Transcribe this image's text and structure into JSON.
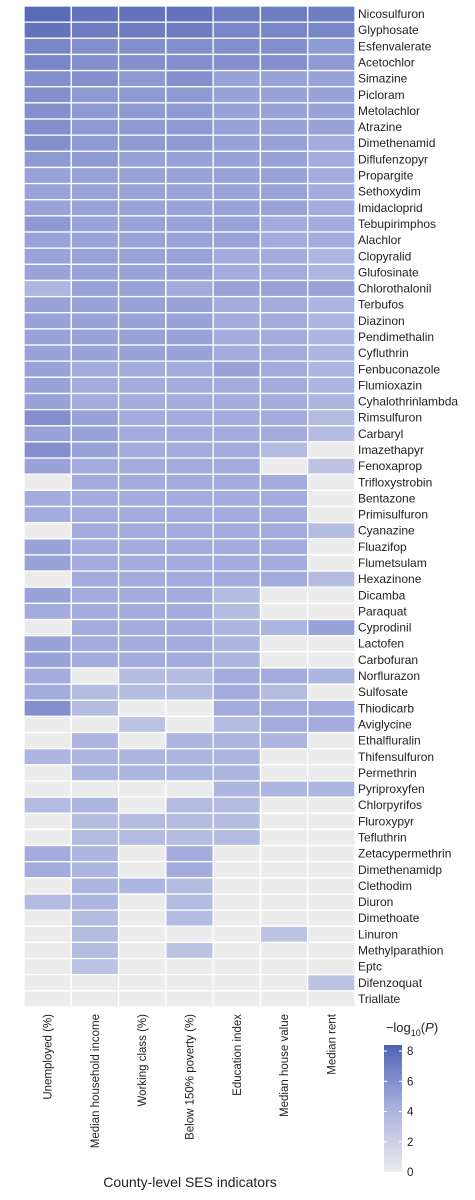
{
  "chart_data": {
    "type": "heatmap",
    "xlabel": "County-level SES indicators",
    "columns": [
      "Unemployed (%)",
      "Median household income",
      "Working class (%)",
      "Below 150% poverty (%)",
      "Education index",
      "Median house value",
      "Median rent"
    ],
    "rows": [
      "Nicosulfuron",
      "Glyphosate",
      "Esfenvalerate",
      "Acetochlor",
      "Simazine",
      "Picloram",
      "Metolachlor",
      "Atrazine",
      "Dimethenamid",
      "Diflufenzopyr",
      "Propargite",
      "Sethoxydim",
      "Imidacloprid",
      "Tebupirimphos",
      "Alachlor",
      "Clopyralid",
      "Glufosinate",
      "Chlorothalonil",
      "Terbufos",
      "Diazinon",
      "Pendimethalin",
      "Cyfluthrin",
      "Fenbuconazole",
      "Flumioxazin",
      "Cyhalothrinlambda",
      "Rimsulfuron",
      "Carbaryl",
      "Imazethapyr",
      "Fenoxaprop",
      "Trifloxystrobin",
      "Bentazone",
      "Primisulfuron",
      "Cyanazine",
      "Fluazifop",
      "Flumetsulam",
      "Hexazinone",
      "Dicamba",
      "Paraquat",
      "Cyprodinil",
      "Lactofen",
      "Carbofuran",
      "Norflurazon",
      "Sulfosate",
      "Thiodicarb",
      "Aviglycine",
      "Ethalfluralin",
      "Thifensulfuron",
      "Permethrin",
      "Pyriproxyfen",
      "Chlorpyrifos",
      "Fluroxypyr",
      "Tefluthrin",
      "Zetacypermethrin",
      "Dimethenamidp",
      "Clethodim",
      "Diuron",
      "Dimethoate",
      "Linuron",
      "Methylparathion",
      "Eptc",
      "Difenzoquat",
      "Triallate"
    ],
    "values": [
      [
        8.0,
        7.5,
        7.5,
        7.5,
        7.0,
        7.0,
        7.0
      ],
      [
        7.5,
        7.0,
        7.0,
        7.0,
        6.5,
        6.5,
        6.5
      ],
      [
        6.5,
        6.0,
        6.0,
        6.0,
        6.0,
        6.0,
        5.5
      ],
      [
        6.5,
        6.0,
        6.0,
        6.0,
        6.0,
        6.0,
        5.5
      ],
      [
        6.0,
        6.0,
        5.5,
        6.0,
        5.0,
        5.0,
        5.0
      ],
      [
        6.0,
        5.5,
        5.5,
        5.5,
        5.0,
        5.0,
        5.0
      ],
      [
        6.0,
        5.5,
        5.5,
        5.5,
        5.0,
        5.0,
        5.0
      ],
      [
        6.0,
        5.5,
        5.5,
        5.5,
        5.0,
        5.0,
        5.0
      ],
      [
        6.0,
        5.5,
        5.5,
        5.5,
        5.0,
        5.0,
        4.5
      ],
      [
        5.5,
        5.5,
        5.0,
        5.0,
        5.0,
        5.0,
        4.5
      ],
      [
        5.0,
        5.0,
        5.0,
        5.0,
        5.0,
        5.0,
        4.5
      ],
      [
        5.0,
        5.0,
        5.0,
        5.0,
        5.0,
        5.0,
        4.5
      ],
      [
        5.0,
        5.0,
        5.0,
        5.0,
        5.0,
        5.0,
        4.5
      ],
      [
        5.5,
        5.0,
        5.0,
        5.0,
        5.0,
        4.5,
        4.5
      ],
      [
        5.0,
        5.0,
        5.0,
        5.0,
        5.0,
        4.5,
        4.5
      ],
      [
        5.0,
        5.0,
        5.0,
        5.0,
        4.5,
        4.5,
        4.0
      ],
      [
        5.0,
        5.0,
        5.0,
        5.0,
        4.5,
        4.5,
        4.0
      ],
      [
        4.0,
        5.0,
        5.0,
        4.5,
        5.0,
        5.0,
        5.0
      ],
      [
        5.0,
        5.0,
        5.0,
        5.0,
        4.5,
        4.5,
        4.0
      ],
      [
        5.0,
        5.0,
        5.0,
        5.0,
        4.5,
        4.5,
        4.0
      ],
      [
        5.0,
        5.0,
        5.0,
        5.0,
        4.5,
        4.5,
        4.0
      ],
      [
        5.0,
        5.0,
        5.0,
        5.0,
        4.5,
        4.5,
        4.0
      ],
      [
        5.0,
        4.5,
        4.5,
        4.5,
        5.0,
        4.5,
        4.0
      ],
      [
        5.0,
        4.5,
        4.5,
        4.5,
        4.5,
        4.5,
        4.0
      ],
      [
        5.0,
        4.5,
        4.5,
        4.5,
        4.5,
        4.5,
        4.0
      ],
      [
        6.0,
        5.0,
        4.5,
        4.5,
        4.5,
        4.5,
        3.5
      ],
      [
        5.0,
        5.0,
        4.5,
        4.5,
        4.5,
        4.5,
        3.5
      ],
      [
        6.0,
        5.0,
        4.5,
        4.5,
        4.5,
        3.5,
        0.0
      ],
      [
        5.0,
        4.5,
        4.5,
        4.5,
        4.5,
        0.0,
        3.0
      ],
      [
        0.0,
        4.5,
        4.5,
        4.5,
        4.5,
        4.5,
        0.0
      ],
      [
        4.5,
        4.5,
        4.5,
        4.5,
        4.5,
        4.5,
        0.0
      ],
      [
        4.5,
        4.5,
        4.5,
        4.5,
        4.5,
        4.5,
        0.0
      ],
      [
        0.0,
        4.5,
        4.5,
        4.5,
        4.5,
        4.5,
        3.5
      ],
      [
        5.0,
        4.5,
        4.5,
        4.5,
        4.5,
        4.5,
        0.0
      ],
      [
        5.0,
        4.5,
        4.5,
        4.5,
        4.5,
        4.5,
        0.0
      ],
      [
        0.0,
        4.5,
        4.5,
        4.5,
        4.5,
        4.5,
        3.5
      ],
      [
        5.0,
        4.5,
        4.5,
        4.5,
        3.5,
        0.0,
        0.0
      ],
      [
        4.5,
        4.5,
        4.5,
        4.5,
        3.5,
        0.0,
        0.0
      ],
      [
        0.0,
        4.5,
        4.5,
        4.5,
        4.0,
        4.0,
        5.0
      ],
      [
        5.0,
        4.5,
        4.5,
        4.5,
        4.0,
        0.0,
        0.0
      ],
      [
        5.0,
        4.5,
        4.5,
        4.5,
        4.0,
        0.0,
        0.0
      ],
      [
        4.5,
        0.0,
        3.5,
        3.5,
        4.5,
        4.5,
        4.0
      ],
      [
        4.5,
        3.5,
        3.5,
        3.5,
        4.5,
        3.5,
        0.0
      ],
      [
        6.0,
        3.5,
        0.0,
        0.0,
        4.5,
        4.5,
        4.5
      ],
      [
        0.0,
        0.0,
        3.0,
        0.0,
        3.5,
        4.5,
        4.5
      ],
      [
        0.0,
        4.0,
        0.0,
        4.0,
        4.0,
        4.0,
        0.0
      ],
      [
        4.0,
        4.0,
        4.0,
        4.0,
        4.0,
        0.0,
        0.0
      ],
      [
        0.0,
        4.0,
        4.0,
        4.0,
        4.0,
        0.0,
        0.0
      ],
      [
        0.0,
        0.0,
        0.0,
        0.0,
        4.0,
        4.0,
        4.0
      ],
      [
        3.5,
        4.0,
        0.0,
        3.5,
        3.5,
        0.0,
        0.0
      ],
      [
        0.0,
        3.5,
        3.5,
        3.5,
        3.5,
        0.0,
        0.0
      ],
      [
        0.0,
        3.5,
        3.5,
        3.5,
        3.5,
        0.0,
        0.0
      ],
      [
        4.5,
        4.0,
        0.0,
        4.5,
        0.0,
        0.0,
        0.0
      ],
      [
        4.5,
        4.0,
        0.0,
        4.5,
        0.0,
        0.0,
        0.0
      ],
      [
        0.0,
        4.0,
        4.0,
        3.5,
        0.0,
        0.0,
        0.0
      ],
      [
        3.5,
        4.0,
        0.0,
        3.5,
        0.0,
        0.0,
        0.0
      ],
      [
        0.0,
        3.5,
        0.0,
        3.5,
        0.0,
        0.0,
        0.0
      ],
      [
        0.0,
        3.5,
        0.0,
        0.0,
        0.0,
        3.0,
        0.0
      ],
      [
        0.0,
        3.5,
        0.0,
        3.0,
        0.0,
        0.0,
        0.0
      ],
      [
        0.0,
        3.0,
        0.0,
        0.0,
        0.0,
        0.0,
        0.0
      ],
      [
        0.0,
        0.0,
        0.0,
        0.0,
        0.0,
        0.0,
        3.0
      ],
      [
        0.0,
        0.0,
        0.0,
        0.0,
        0.0,
        0.0,
        0.0
      ]
    ],
    "legend": {
      "title_prefix": "−log",
      "title_sub": "10",
      "title_open": "(",
      "title_var": "P",
      "title_close": ")",
      "ticks": [
        0,
        2,
        4,
        6,
        8
      ],
      "range": [
        0,
        8.4
      ]
    },
    "colors": {
      "low": "#ececec",
      "mid": "#aab2e0",
      "high": "#4f63b3",
      "grid": "#ffffff"
    }
  }
}
